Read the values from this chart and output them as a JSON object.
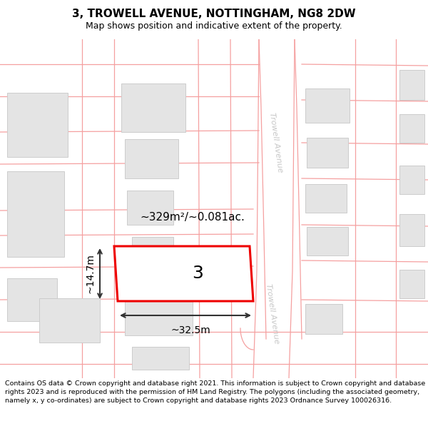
{
  "title": "3, TROWELL AVENUE, NOTTINGHAM, NG8 2DW",
  "subtitle": "Map shows position and indicative extent of the property.",
  "footer": "Contains OS data © Crown copyright and database right 2021. This information is subject to Crown copyright and database rights 2023 and is reproduced with the permission of HM Land Registry. The polygons (including the associated geometry, namely x, y co-ordinates) are subject to Crown copyright and database rights 2023 Ordnance Survey 100026316.",
  "bg_color": "#ffffff",
  "map_bg": "#ffffff",
  "road_color": "#f5a0a0",
  "building_color": "#e4e4e4",
  "building_edge": "#cccccc",
  "highlight_color": "#ee0000",
  "dim_color": "#333333",
  "road_label_color": "#c8c8c8",
  "area_label": "~329m²/~0.081ac.",
  "width_label": "~32.5m",
  "height_label": "~14.7m",
  "property_number": "3",
  "title_fontsize": 11,
  "subtitle_fontsize": 9,
  "footer_fontsize": 6.8,
  "area_fontsize": 11,
  "dim_fontsize": 10,
  "prop_number_fontsize": 18
}
